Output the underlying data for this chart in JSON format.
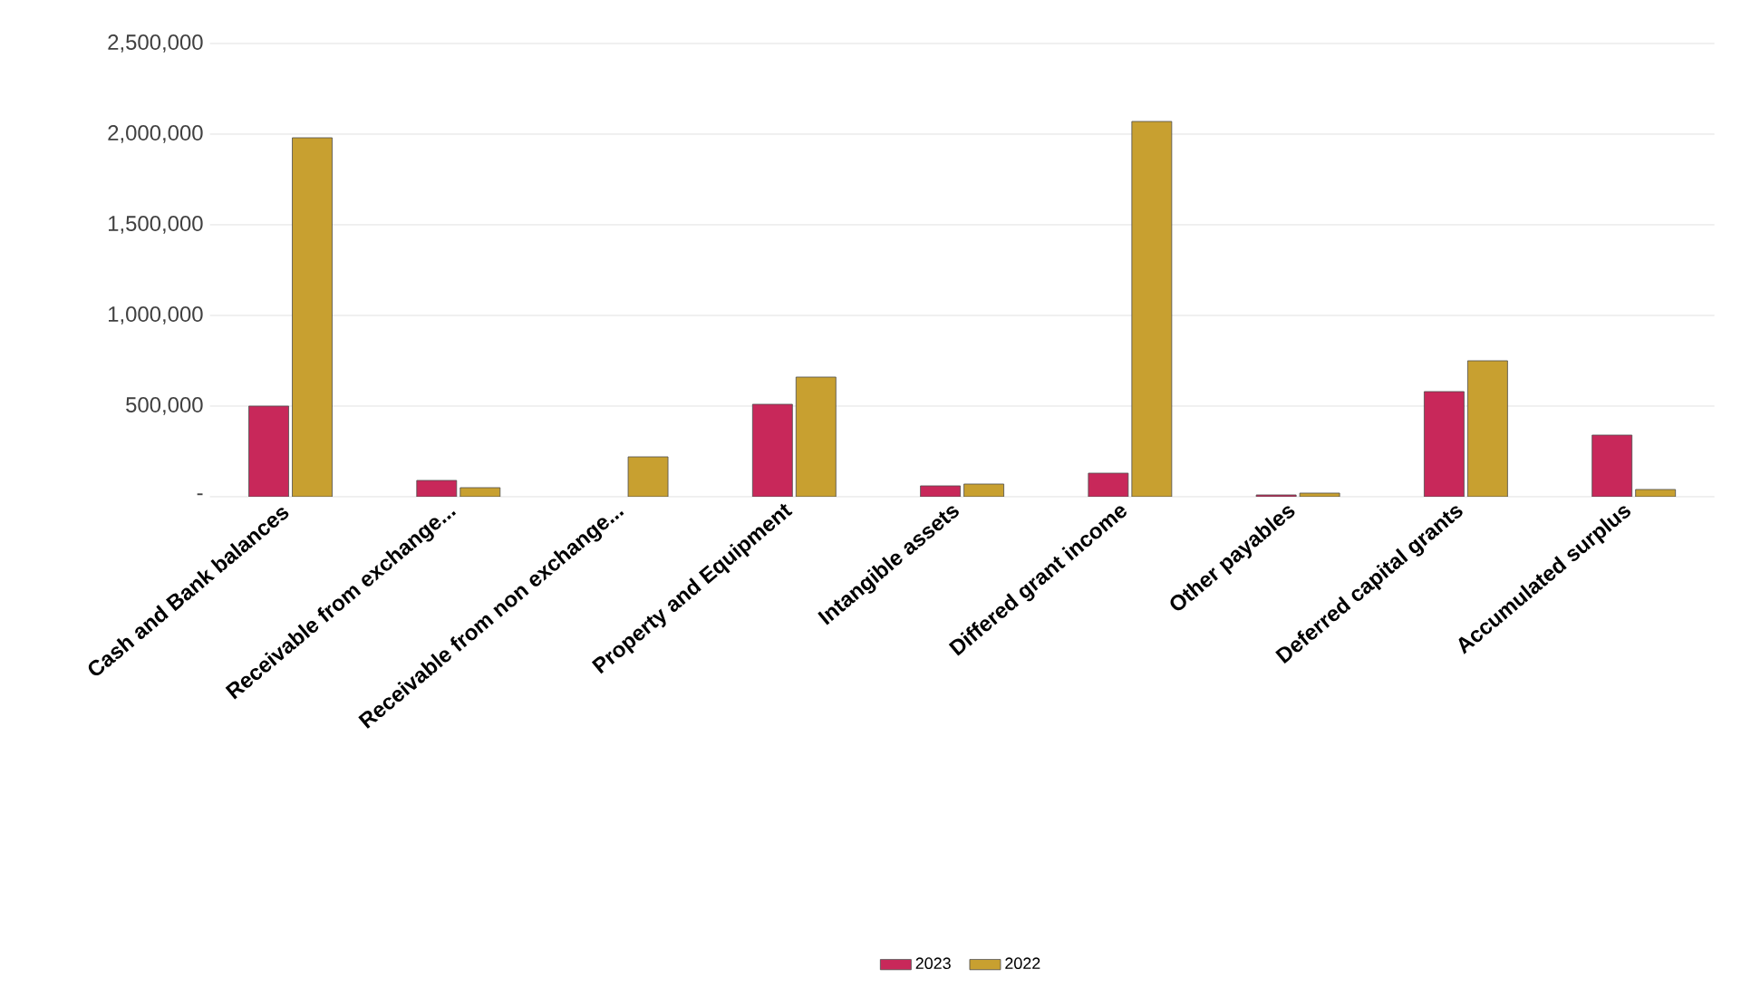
{
  "chart_data": {
    "type": "bar",
    "categories": [
      "Cash and Bank balances",
      "Receivable from exchange...",
      "Receivable from non exchange...",
      "Property and Equipment",
      "Intangible assets",
      "Differed grant income",
      "Other payables",
      "Deferred capital grants",
      "Accumulated surplus"
    ],
    "series": [
      {
        "name": "2023",
        "color": "#c8285a",
        "values": [
          500000,
          90000,
          null,
          510000,
          60000,
          130000,
          10000,
          580000,
          340000
        ]
      },
      {
        "name": "2022",
        "color": "#c8a030",
        "values": [
          1980000,
          50000,
          220000,
          660000,
          70000,
          2070000,
          20000,
          750000,
          40000
        ]
      }
    ],
    "ylim": [
      0,
      2500000
    ],
    "yticks": [
      {
        "value": 0,
        "label": "-"
      },
      {
        "value": 500000,
        "label": "500,000"
      },
      {
        "value": 1000000,
        "label": "1,000,000"
      },
      {
        "value": 1500000,
        "label": "1,500,000"
      },
      {
        "value": 2000000,
        "label": "2,000,000"
      },
      {
        "value": 2500000,
        "label": "2,500,000"
      }
    ],
    "grid": "y",
    "legend": "bottom"
  }
}
